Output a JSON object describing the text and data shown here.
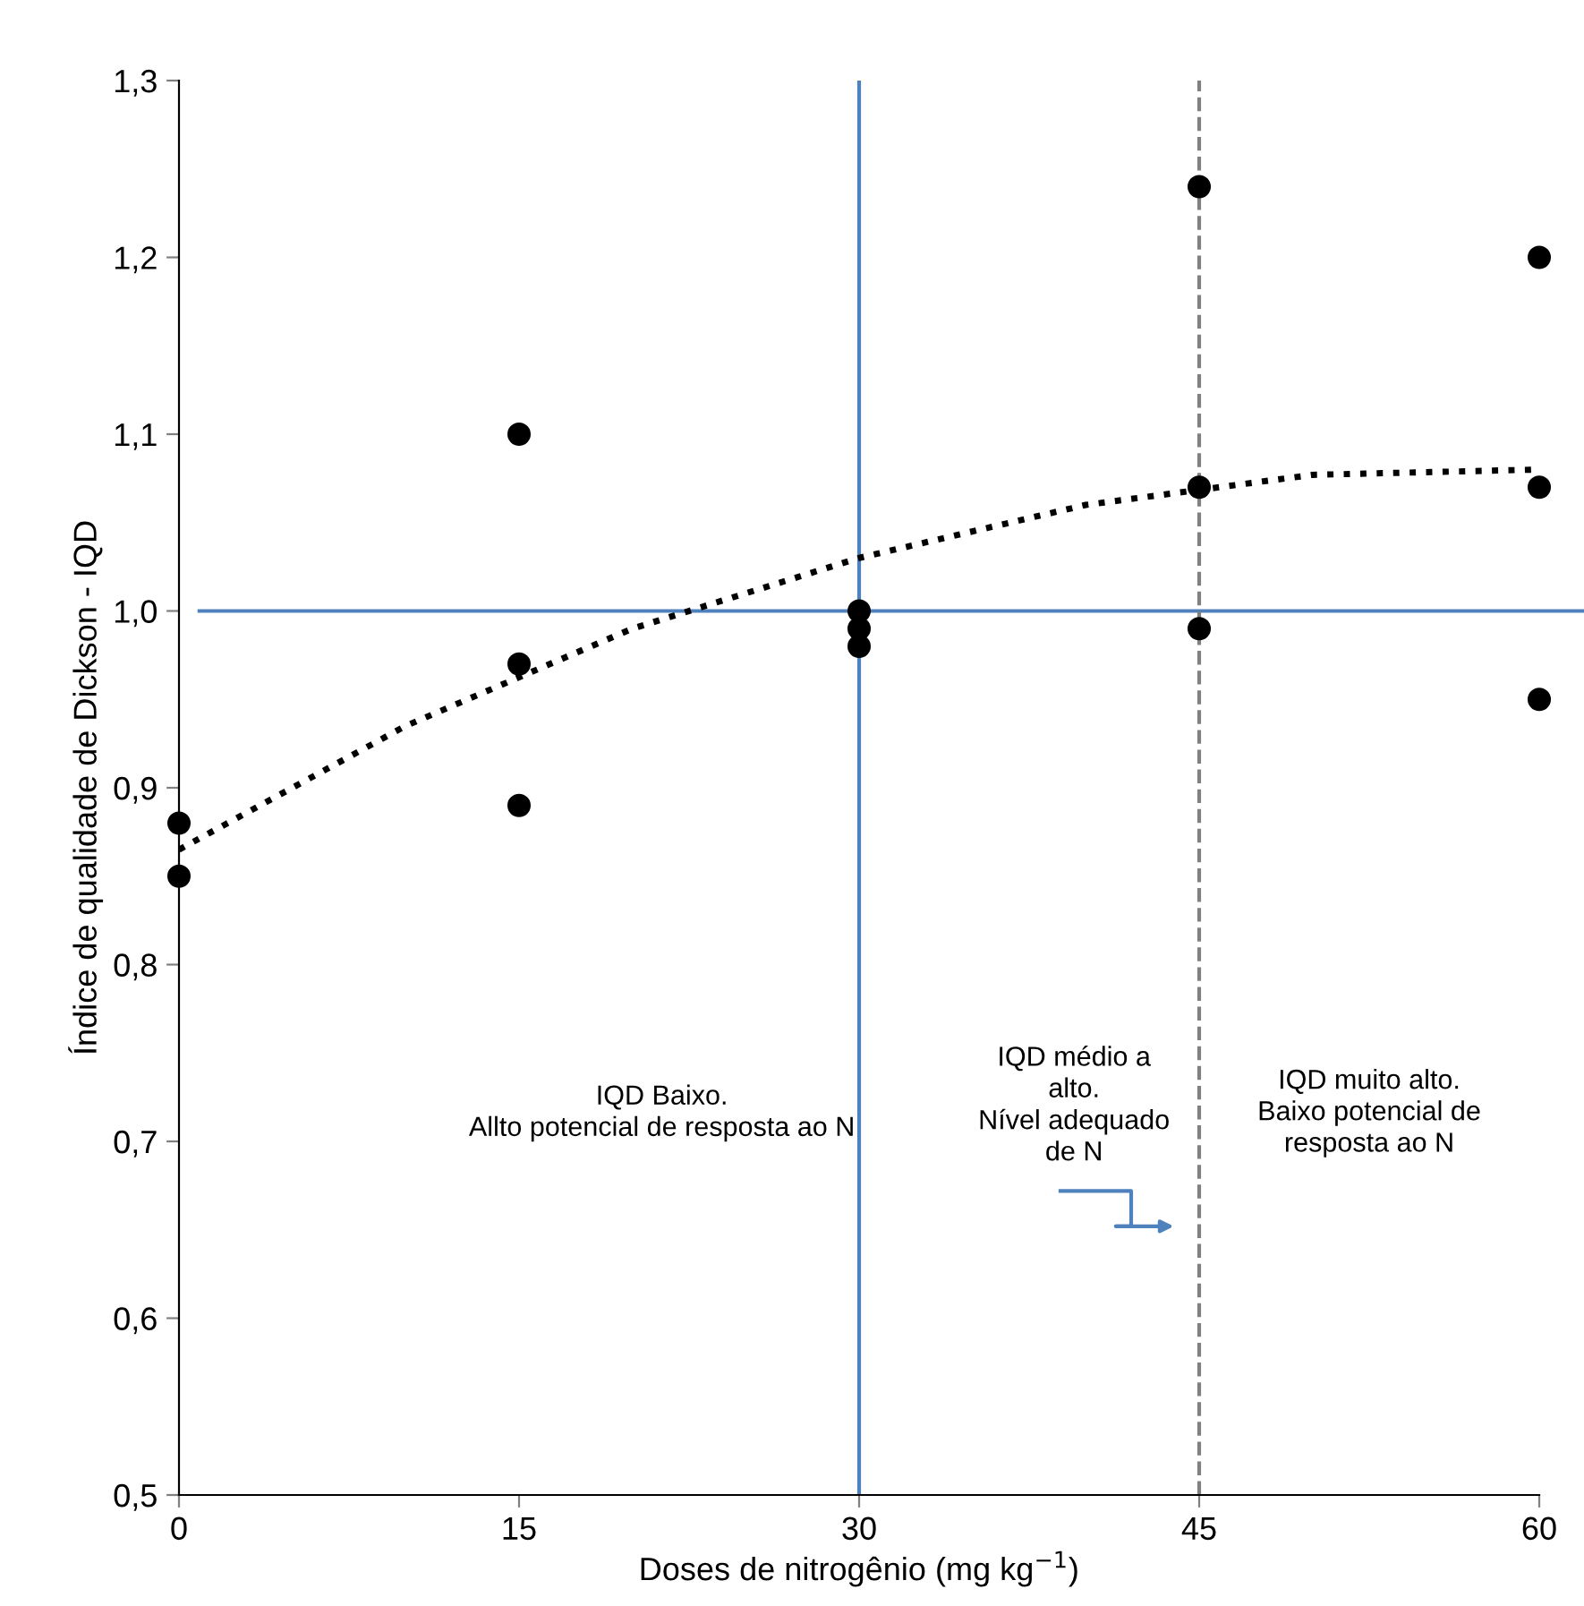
{
  "chart_data": {
    "type": "scatter",
    "xlabel": "Doses de nitrogênio (mg kg$^{−1}$)",
    "ylabel": "Índice de qualidade de Dickson - IQD",
    "xlim": [
      0,
      60
    ],
    "ylim": [
      0.5,
      1.3
    ],
    "xticks": [
      0,
      15,
      30,
      45,
      60
    ],
    "yticks": [
      {
        "value": 0.5,
        "label": "0,5"
      },
      {
        "value": 0.6,
        "label": "0,6"
      },
      {
        "value": 0.7,
        "label": "0,7"
      },
      {
        "value": 0.8,
        "label": "0,8"
      },
      {
        "value": 0.9,
        "label": "0,9"
      },
      {
        "value": 1.0,
        "label": "1,0"
      },
      {
        "value": 1.1,
        "label": "1,1"
      },
      {
        "value": 1.2,
        "label": "1,2"
      },
      {
        "value": 1.3,
        "label": "1,3"
      }
    ],
    "grid": false,
    "legend": false,
    "series": [
      {
        "color": "#000000",
        "marker": "circle",
        "x": [
          0,
          0,
          15,
          15,
          15,
          30,
          30,
          30,
          45,
          45,
          45,
          60,
          60,
          60
        ],
        "values": [
          0.88,
          0.85,
          1.1,
          0.97,
          0.89,
          1.0,
          0.99,
          0.98,
          1.24,
          1.07,
          0.99,
          1.2,
          1.07,
          0.95
        ]
      },
      {
        "type": "line",
        "color": "#000000",
        "marker": "none",
        "line_style": "dotted",
        "x": [
          0,
          10,
          20,
          30,
          40,
          50,
          60
        ],
        "values": [
          0.865,
          0.935,
          0.99,
          1.03,
          1.06,
          1.077,
          1.08
        ]
      }
    ],
    "ref_lines": [
      {
        "axis": "y",
        "value": 1.0,
        "color": "#4f81bd",
        "line_style": "solid"
      },
      {
        "axis": "x",
        "value": 30,
        "color": "#4f81bd",
        "line_style": "solid"
      },
      {
        "axis": "x",
        "value": 45,
        "color": "#808080",
        "line_style": "dashed"
      }
    ],
    "annotations": [
      "IQD Baixo.\nAllto potencial de resposta ao N",
      "IQD médio a\nalto.\nNível adequado\nde N",
      "IQD muito alto.\nBaixo potencial de\nresposta ao N"
    ]
  }
}
